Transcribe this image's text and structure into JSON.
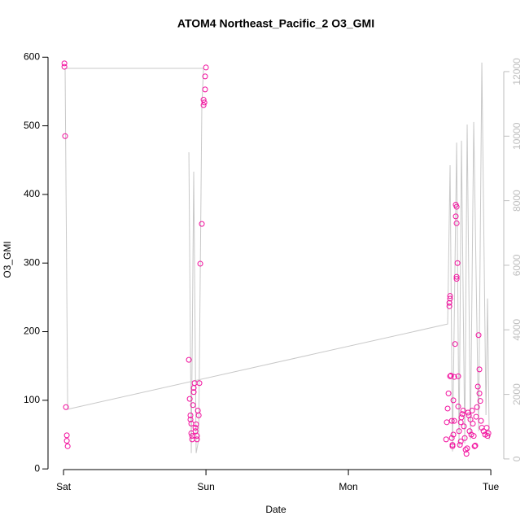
{
  "chart_data": {
    "type": "scatter",
    "title": "ATOM4 Northeast_Pacific_2 O3_GMI",
    "x_label": "Date",
    "y_label": "O3_GMI",
    "xlim": [
      -0.109,
      3.091
    ],
    "xticks": [
      {
        "value": 0,
        "label": "Sat"
      },
      {
        "value": 1,
        "label": "Sun"
      },
      {
        "value": 2,
        "label": "Mon"
      },
      {
        "value": 3,
        "label": "Tue"
      }
    ],
    "ylim": [
      -1,
      611
    ],
    "yticks": [
      0,
      100,
      200,
      300,
      400,
      500,
      600
    ],
    "y2lim": [
      -330,
      12680
    ],
    "y2ticks": [
      0,
      2000,
      4000,
      6000,
      8000,
      10000,
      12000
    ],
    "y2_color": "#bebebe",
    "series": [
      {
        "type": "points",
        "color": "#f2109e",
        "x": [
          0.006,
          0.006,
          0.011,
          0.017,
          0.023,
          0.023,
          0.029,
          0.88,
          0.886,
          0.891,
          0.891,
          0.897,
          0.897,
          0.903,
          0.903,
          0.909,
          0.914,
          0.914,
          0.92,
          0.926,
          0.926,
          0.931,
          0.937,
          0.937,
          0.943,
          0.949,
          0.954,
          0.96,
          0.971,
          0.983,
          0.983,
          0.989,
          0.994,
          0.994,
          1.0,
          2.686,
          2.691,
          2.697,
          2.703,
          2.709,
          2.709,
          2.714,
          2.714,
          2.714,
          2.72,
          2.726,
          2.726,
          2.731,
          2.731,
          2.737,
          2.737,
          2.743,
          2.743,
          2.749,
          2.754,
          2.754,
          2.76,
          2.76,
          2.766,
          2.76,
          2.76,
          2.771,
          2.771,
          2.777,
          2.783,
          2.789,
          2.789,
          2.794,
          2.8,
          2.806,
          2.811,
          2.817,
          2.823,
          2.829,
          2.834,
          2.84,
          2.846,
          2.851,
          2.857,
          2.863,
          2.869,
          2.874,
          2.88,
          2.886,
          2.891,
          2.897,
          2.903,
          2.909,
          2.914,
          2.92,
          2.92,
          2.926,
          2.931,
          2.937,
          2.949,
          2.96,
          2.971,
          2.977,
          2.983
        ],
        "values": [
          591,
          586,
          485,
          90,
          49,
          41,
          33,
          159,
          102,
          78,
          72,
          66,
          52,
          48,
          43,
          93,
          112,
          118,
          125,
          60,
          55,
          65,
          48,
          43,
          85,
          78,
          125,
          299,
          357,
          530,
          538,
          534,
          553,
          572,
          585,
          43,
          68,
          88,
          110,
          237,
          242,
          248,
          252,
          135,
          136,
          70,
          45,
          33,
          35,
          100,
          50,
          134,
          70,
          182,
          385,
          368,
          382,
          358,
          300,
          280,
          277,
          135,
          91,
          55,
          35,
          40,
          68,
          75,
          80,
          85,
          62,
          45,
          28,
          22,
          30,
          82,
          78,
          55,
          72,
          50,
          85,
          66,
          48,
          33,
          34,
          76,
          90,
          120,
          195,
          145,
          110,
          99,
          70,
          60,
          55,
          50,
          60,
          48,
          52
        ]
      },
      {
        "type": "line",
        "color": "#c8c8c8",
        "axis": "y2",
        "x": [
          0.88,
          0.897,
          0.914,
          0.931,
          0.949,
          0.971,
          0.983,
          0.011,
          0.029,
          2.697,
          2.714,
          2.731,
          2.76,
          2.777,
          2.794,
          2.817,
          2.834,
          2.857,
          2.88,
          2.914,
          2.937,
          2.966,
          2.977,
          2.989
        ],
        "values": [
          9500,
          180,
          8900,
          180,
          600,
          10940,
          12100,
          12100,
          1540,
          4180,
          9100,
          230,
          9800,
          350,
          9860,
          480,
          10360,
          600,
          10440,
          860,
          12280,
          1360,
          4970,
          600
        ]
      }
    ]
  }
}
